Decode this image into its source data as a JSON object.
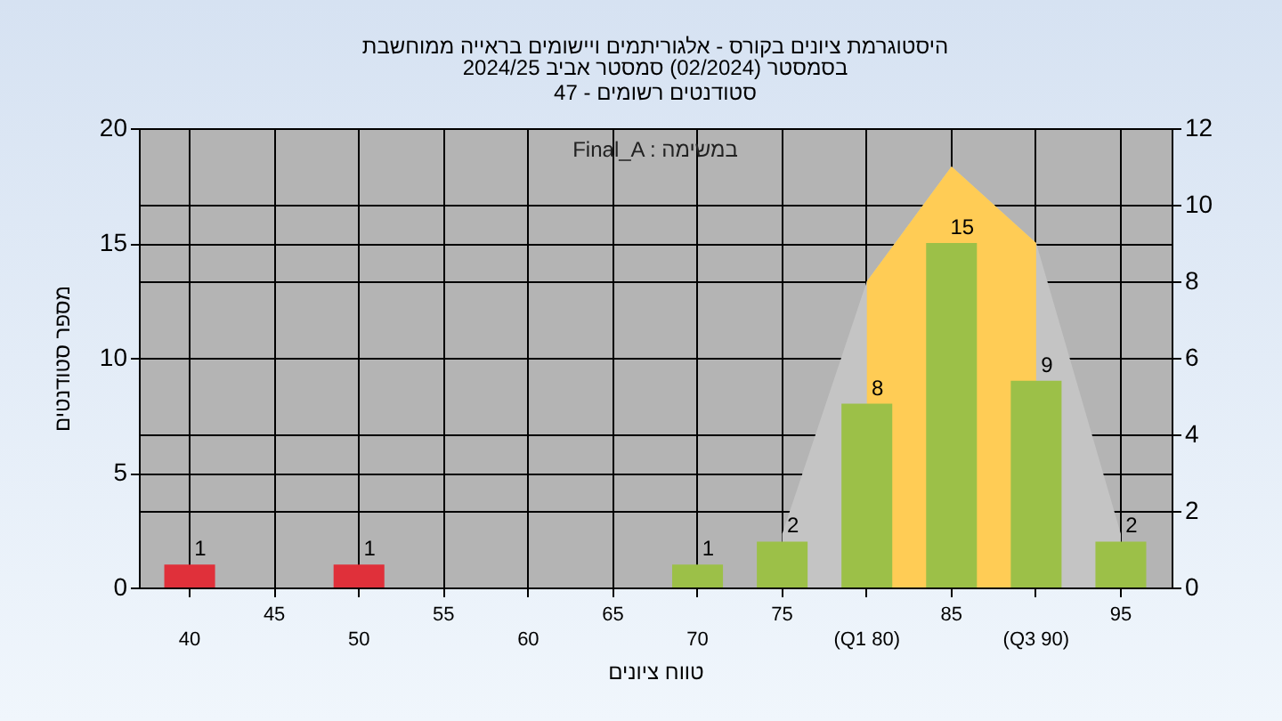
{
  "chart_data": {
    "type": "bar",
    "title": "היסטוגרמת ציונים בקורס - אלגוריתמים ויישומים בראייה ממוחשבת",
    "subtitle": "בסמסטר  (02/2024)  סמסטר אביב 2024/25\nסטודנטים רשומים - 47",
    "xlabel": "טווח ציונים",
    "ylabel": "מספר סטודנטים",
    "annotations": [
      "Final_A : במשימה"
    ],
    "categories": [
      "40",
      "45",
      "50",
      "55",
      "60",
      "65",
      "70",
      "75",
      "(Q1 80)",
      "85",
      "(Q3 90)",
      "95"
    ],
    "series": [
      {
        "type": "area",
        "axis": "y2",
        "color": "#c4c4c4",
        "values": [
          null,
          null,
          null,
          null,
          null,
          null,
          null,
          1.4,
          8,
          11,
          9,
          1.4
        ]
      },
      {
        "type": "area",
        "axis": "y2",
        "color": "#ffcc55",
        "values": [
          null,
          null,
          null,
          null,
          null,
          null,
          null,
          null,
          8,
          11,
          9,
          null
        ]
      },
      {
        "type": "bar",
        "colors": [
          "#e0303a",
          null,
          "#e0303a",
          null,
          null,
          null,
          "#9cc048",
          "#9cc048",
          "#9cc048",
          "#9cc048",
          "#9cc048",
          "#9cc048"
        ],
        "values": [
          1,
          null,
          1,
          null,
          null,
          null,
          1,
          2,
          8,
          15,
          9,
          2
        ],
        "value_labels": [
          "1",
          null,
          "1",
          null,
          null,
          null,
          "1",
          "2",
          "8",
          "15",
          "9",
          "2"
        ]
      }
    ],
    "ylim": [
      0,
      20
    ],
    "yticks": [
      0,
      5,
      10,
      15,
      20
    ],
    "y2lim": [
      0,
      12
    ],
    "y2ticks": [
      0,
      2,
      4,
      6,
      8,
      10,
      12
    ],
    "grid": true
  }
}
